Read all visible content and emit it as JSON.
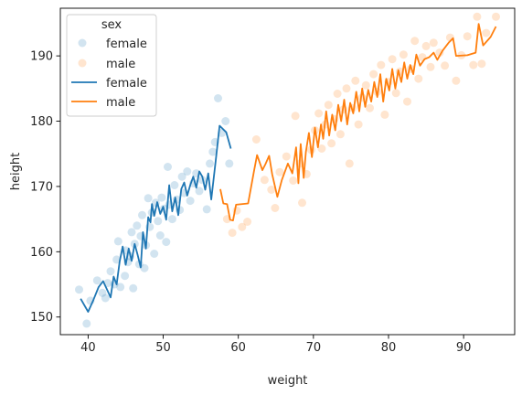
{
  "chart_data": {
    "type": "scatter",
    "xlabel": "weight",
    "ylabel": "height",
    "xlim": [
      36.3,
      96.8
    ],
    "ylim": [
      147.3,
      197.3
    ],
    "xticks": [
      40,
      50,
      60,
      70,
      80,
      90
    ],
    "yticks": [
      150,
      160,
      170,
      180,
      190
    ],
    "grid": false,
    "legend": {
      "title": "sex",
      "placement": "top-left",
      "entries": [
        {
          "label": "female",
          "kind": "scatter",
          "color": "#1f77b4"
        },
        {
          "label": "male",
          "kind": "scatter",
          "color": "#ff7f0e"
        },
        {
          "label": "female",
          "kind": "line",
          "color": "#1f77b4"
        },
        {
          "label": "male",
          "kind": "line",
          "color": "#ff7f0e"
        }
      ]
    },
    "scatter_series": [
      {
        "name": "female",
        "color": "#1f77b4",
        "points": [
          [
            38.8,
            154.2
          ],
          [
            39.8,
            149.0
          ],
          [
            40.3,
            152.5
          ],
          [
            41.2,
            155.6
          ],
          [
            41.9,
            153.7
          ],
          [
            42.3,
            152.9
          ],
          [
            42.6,
            155.2
          ],
          [
            43.0,
            157.0
          ],
          [
            43.5,
            155.0
          ],
          [
            43.8,
            158.8
          ],
          [
            44.0,
            161.6
          ],
          [
            44.3,
            154.6
          ],
          [
            44.9,
            156.3
          ],
          [
            45.0,
            160.2
          ],
          [
            45.3,
            158.4
          ],
          [
            45.6,
            159.3
          ],
          [
            45.8,
            163.0
          ],
          [
            46.0,
            154.4
          ],
          [
            46.2,
            161.2
          ],
          [
            46.5,
            164.0
          ],
          [
            46.8,
            158.1
          ],
          [
            47.0,
            162.4
          ],
          [
            47.2,
            165.6
          ],
          [
            47.5,
            157.5
          ],
          [
            47.7,
            161.0
          ],
          [
            48.0,
            168.2
          ],
          [
            48.2,
            163.8
          ],
          [
            48.5,
            166.0
          ],
          [
            48.8,
            159.7
          ],
          [
            49.0,
            167.5
          ],
          [
            49.3,
            164.7
          ],
          [
            49.6,
            162.5
          ],
          [
            49.8,
            168.3
          ],
          [
            50.1,
            166.6
          ],
          [
            50.4,
            161.5
          ],
          [
            50.6,
            173.0
          ],
          [
            50.8,
            167.2
          ],
          [
            51.2,
            165.0
          ],
          [
            51.5,
            170.2
          ],
          [
            51.8,
            168.0
          ],
          [
            52.2,
            166.4
          ],
          [
            52.5,
            171.5
          ],
          [
            52.8,
            169.0
          ],
          [
            53.2,
            172.3
          ],
          [
            53.6,
            167.8
          ],
          [
            54.0,
            170.5
          ],
          [
            54.4,
            172.0
          ],
          [
            54.8,
            169.3
          ],
          [
            55.2,
            171.0
          ],
          [
            55.8,
            166.5
          ],
          [
            56.2,
            173.5
          ],
          [
            56.6,
            175.3
          ],
          [
            56.9,
            176.8
          ],
          [
            57.3,
            183.5
          ],
          [
            57.8,
            178.2
          ],
          [
            58.3,
            180.0
          ],
          [
            58.8,
            173.5
          ]
        ]
      },
      {
        "name": "male",
        "color": "#ff7f0e",
        "points": [
          [
            58.5,
            165.0
          ],
          [
            59.2,
            162.9
          ],
          [
            59.8,
            166.3
          ],
          [
            60.5,
            163.8
          ],
          [
            61.2,
            164.6
          ],
          [
            62.4,
            177.2
          ],
          [
            63.5,
            171.0
          ],
          [
            64.4,
            169.5
          ],
          [
            64.9,
            166.7
          ],
          [
            65.5,
            172.2
          ],
          [
            66.4,
            174.6
          ],
          [
            67.3,
            170.9
          ],
          [
            67.6,
            180.8
          ],
          [
            68.2,
            173.5
          ],
          [
            68.5,
            167.5
          ],
          [
            69.1,
            171.9
          ],
          [
            69.7,
            175.6
          ],
          [
            70.2,
            178.6
          ],
          [
            70.7,
            181.2
          ],
          [
            71.1,
            175.8
          ],
          [
            71.6,
            179.5
          ],
          [
            72.0,
            182.5
          ],
          [
            72.4,
            176.6
          ],
          [
            72.8,
            180.3
          ],
          [
            73.2,
            184.2
          ],
          [
            73.6,
            178.0
          ],
          [
            74.0,
            181.8
          ],
          [
            74.4,
            185.0
          ],
          [
            74.8,
            173.5
          ],
          [
            75.2,
            182.0
          ],
          [
            75.6,
            186.2
          ],
          [
            76.0,
            179.5
          ],
          [
            76.5,
            183.6
          ],
          [
            77.0,
            185.5
          ],
          [
            77.5,
            182.0
          ],
          [
            78.0,
            187.2
          ],
          [
            78.5,
            184.5
          ],
          [
            79.0,
            188.6
          ],
          [
            79.5,
            181.0
          ],
          [
            80.0,
            186.0
          ],
          [
            80.5,
            189.5
          ],
          [
            81.0,
            184.3
          ],
          [
            81.5,
            187.6
          ],
          [
            82.0,
            190.2
          ],
          [
            82.5,
            183.0
          ],
          [
            83.0,
            188.0
          ],
          [
            83.5,
            192.3
          ],
          [
            84.0,
            186.5
          ],
          [
            84.5,
            189.8
          ],
          [
            85.0,
            191.5
          ],
          [
            85.6,
            188.3
          ],
          [
            86.0,
            192.0
          ],
          [
            86.8,
            190.5
          ],
          [
            87.5,
            188.5
          ],
          [
            88.2,
            192.8
          ],
          [
            89.0,
            186.2
          ],
          [
            89.7,
            190.1
          ],
          [
            90.5,
            193.0
          ],
          [
            91.3,
            188.6
          ],
          [
            91.8,
            196.0
          ],
          [
            92.4,
            188.8
          ],
          [
            93.0,
            193.5
          ],
          [
            94.3,
            196.0
          ]
        ]
      }
    ],
    "line_series": [
      {
        "name": "female",
        "color": "#1f77b4",
        "points": [
          [
            39.0,
            152.8
          ],
          [
            40.0,
            150.8
          ],
          [
            40.7,
            152.6
          ],
          [
            41.4,
            154.6
          ],
          [
            42.0,
            155.5
          ],
          [
            42.6,
            154.0
          ],
          [
            43.0,
            153.0
          ],
          [
            43.4,
            156.2
          ],
          [
            43.8,
            155.0
          ],
          [
            44.2,
            158.5
          ],
          [
            44.6,
            160.8
          ],
          [
            45.0,
            158.0
          ],
          [
            45.4,
            160.5
          ],
          [
            45.8,
            158.6
          ],
          [
            46.2,
            161.2
          ],
          [
            46.6,
            159.5
          ],
          [
            47.0,
            157.6
          ],
          [
            47.3,
            163.0
          ],
          [
            47.7,
            160.5
          ],
          [
            48.0,
            165.3
          ],
          [
            48.3,
            164.5
          ],
          [
            48.5,
            167.3
          ],
          [
            48.8,
            165.5
          ],
          [
            49.2,
            167.6
          ],
          [
            49.6,
            165.8
          ],
          [
            50.0,
            166.9
          ],
          [
            50.4,
            164.9
          ],
          [
            50.8,
            170.2
          ],
          [
            51.2,
            166.2
          ],
          [
            51.6,
            168.3
          ],
          [
            52.0,
            165.6
          ],
          [
            52.4,
            169.6
          ],
          [
            52.8,
            170.6
          ],
          [
            53.2,
            168.6
          ],
          [
            53.6,
            170.2
          ],
          [
            54.0,
            171.5
          ],
          [
            54.4,
            169.8
          ],
          [
            54.8,
            172.3
          ],
          [
            55.2,
            171.5
          ],
          [
            55.6,
            169.5
          ],
          [
            56.0,
            172.0
          ],
          [
            56.4,
            168.0
          ],
          [
            57.0,
            174.0
          ],
          [
            57.5,
            179.3
          ],
          [
            58.4,
            178.3
          ],
          [
            59.0,
            175.8
          ]
        ]
      },
      {
        "name": "male",
        "color": "#ff7f0e",
        "points": [
          [
            57.6,
            169.6
          ],
          [
            58.0,
            167.4
          ],
          [
            58.5,
            167.3
          ],
          [
            58.9,
            164.9
          ],
          [
            59.3,
            164.8
          ],
          [
            59.7,
            167.2
          ],
          [
            61.3,
            167.4
          ],
          [
            62.1,
            172.4
          ],
          [
            62.5,
            174.8
          ],
          [
            63.2,
            172.5
          ],
          [
            63.6,
            173.4
          ],
          [
            64.1,
            174.7
          ],
          [
            64.5,
            171.9
          ],
          [
            65.2,
            168.4
          ],
          [
            65.8,
            171.0
          ],
          [
            66.6,
            173.5
          ],
          [
            67.2,
            172.0
          ],
          [
            67.7,
            176.0
          ],
          [
            68.0,
            170.5
          ],
          [
            68.3,
            176.5
          ],
          [
            68.7,
            171.3
          ],
          [
            69.0,
            175.3
          ],
          [
            69.4,
            178.2
          ],
          [
            69.8,
            174.5
          ],
          [
            70.2,
            179.0
          ],
          [
            70.6,
            176.0
          ],
          [
            71.0,
            179.5
          ],
          [
            71.3,
            177.3
          ],
          [
            71.7,
            181.5
          ],
          [
            72.1,
            177.8
          ],
          [
            72.5,
            181.0
          ],
          [
            72.9,
            178.6
          ],
          [
            73.3,
            182.5
          ],
          [
            73.7,
            180.0
          ],
          [
            74.1,
            183.3
          ],
          [
            74.5,
            179.5
          ],
          [
            74.9,
            182.8
          ],
          [
            75.3,
            181.2
          ],
          [
            75.7,
            184.5
          ],
          [
            76.1,
            181.5
          ],
          [
            76.5,
            185.0
          ],
          [
            76.9,
            182.2
          ],
          [
            77.3,
            184.8
          ],
          [
            77.7,
            183.0
          ],
          [
            78.1,
            186.0
          ],
          [
            78.5,
            183.7
          ],
          [
            78.9,
            187.2
          ],
          [
            79.3,
            183.0
          ],
          [
            79.7,
            186.5
          ],
          [
            80.1,
            184.7
          ],
          [
            80.5,
            188.0
          ],
          [
            80.9,
            185.0
          ],
          [
            81.3,
            187.8
          ],
          [
            81.7,
            186.0
          ],
          [
            82.1,
            189.0
          ],
          [
            82.5,
            186.5
          ],
          [
            82.9,
            188.6
          ],
          [
            83.3,
            187.2
          ],
          [
            83.7,
            190.2
          ],
          [
            84.2,
            188.5
          ],
          [
            84.8,
            189.5
          ],
          [
            85.4,
            189.8
          ],
          [
            86.0,
            190.5
          ],
          [
            86.5,
            189.4
          ],
          [
            87.2,
            190.8
          ],
          [
            88.0,
            192.0
          ],
          [
            88.6,
            192.7
          ],
          [
            89.0,
            190.0
          ],
          [
            90.5,
            190.1
          ],
          [
            91.6,
            190.5
          ],
          [
            92.0,
            194.9
          ],
          [
            92.6,
            191.6
          ],
          [
            93.6,
            192.9
          ],
          [
            94.3,
            194.5
          ]
        ]
      }
    ]
  }
}
